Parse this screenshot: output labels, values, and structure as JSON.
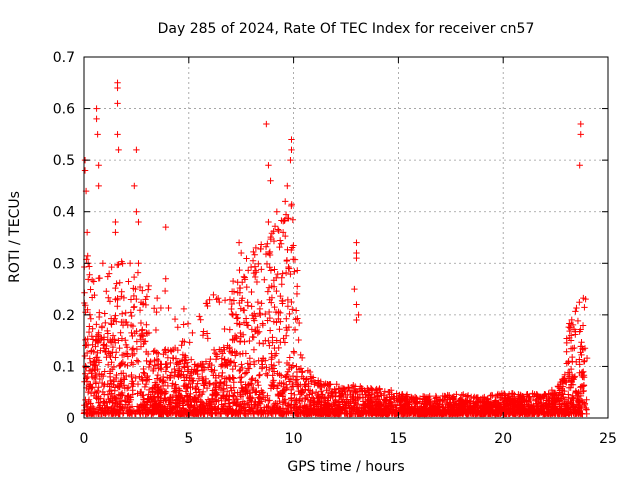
{
  "chart_data": {
    "type": "scatter",
    "title": "Day 285 of 2024, Rate Of TEC Index for receiver cn57",
    "xlabel": "GPS time / hours",
    "ylabel": "ROTI / TECUs",
    "xlim": [
      0,
      25
    ],
    "ylim": [
      0,
      0.7
    ],
    "x_ticks": [
      "0",
      "5",
      "10",
      "15",
      "20",
      "25"
    ],
    "y_ticks": [
      "0",
      "0.1",
      "0.2",
      "0.3",
      "0.4",
      "0.5",
      "0.6",
      "0.7"
    ],
    "x_tick_values": [
      0,
      5,
      10,
      15,
      20,
      25
    ],
    "y_tick_values": [
      0,
      0.1,
      0.2,
      0.3,
      0.4,
      0.5,
      0.6,
      0.7
    ],
    "grid": true,
    "marker": "+",
    "color": "#ff0000",
    "envelope": {
      "description": "approximate upper envelope of the dense ROTI point cloud (hours, TECUs)",
      "x": [
        0,
        0.5,
        1,
        1.5,
        2,
        2.5,
        3,
        3.5,
        4,
        4.5,
        5,
        5.5,
        6,
        6.5,
        7,
        7.5,
        8,
        8.5,
        9,
        9.5,
        10,
        10.5,
        11,
        11.5,
        12,
        12.5,
        13,
        13.5,
        14,
        14.5,
        15,
        16,
        17,
        18,
        19,
        20,
        21,
        22,
        22.5,
        23,
        23.5,
        24
      ],
      "y": [
        0.22,
        0.18,
        0.15,
        0.2,
        0.18,
        0.17,
        0.14,
        0.12,
        0.13,
        0.12,
        0.11,
        0.1,
        0.12,
        0.13,
        0.14,
        0.18,
        0.2,
        0.22,
        0.26,
        0.28,
        0.3,
        0.1,
        0.07,
        0.06,
        0.06,
        0.05,
        0.06,
        0.05,
        0.05,
        0.05,
        0.04,
        0.035,
        0.035,
        0.04,
        0.035,
        0.04,
        0.04,
        0.04,
        0.05,
        0.08,
        0.1,
        0.14
      ]
    },
    "outliers": [
      [
        0.05,
        0.5
      ],
      [
        0.05,
        0.48
      ],
      [
        0.1,
        0.44
      ],
      [
        0.15,
        0.36
      ],
      [
        0.2,
        0.3
      ],
      [
        0.6,
        0.6
      ],
      [
        0.6,
        0.58
      ],
      [
        0.65,
        0.55
      ],
      [
        0.7,
        0.49
      ],
      [
        0.7,
        0.45
      ],
      [
        1.6,
        0.65
      ],
      [
        1.6,
        0.64
      ],
      [
        1.6,
        0.61
      ],
      [
        1.6,
        0.55
      ],
      [
        1.65,
        0.52
      ],
      [
        2.5,
        0.52
      ],
      [
        2.4,
        0.45
      ],
      [
        1.5,
        0.38
      ],
      [
        1.5,
        0.36
      ],
      [
        2.5,
        0.4
      ],
      [
        2.6,
        0.38
      ],
      [
        0.9,
        0.3
      ],
      [
        1.2,
        0.28
      ],
      [
        2.2,
        0.3
      ],
      [
        2.6,
        0.3
      ],
      [
        3.9,
        0.37
      ],
      [
        3.9,
        0.27
      ],
      [
        8.7,
        0.57
      ],
      [
        8.8,
        0.49
      ],
      [
        8.9,
        0.46
      ],
      [
        9.9,
        0.54
      ],
      [
        9.9,
        0.52
      ],
      [
        9.85,
        0.5
      ],
      [
        9.7,
        0.45
      ],
      [
        9.6,
        0.42
      ],
      [
        9.2,
        0.4
      ],
      [
        8.8,
        0.38
      ],
      [
        9.5,
        0.36
      ],
      [
        7.4,
        0.34
      ],
      [
        7.5,
        0.32
      ],
      [
        8.2,
        0.33
      ],
      [
        13.0,
        0.34
      ],
      [
        13.0,
        0.32
      ],
      [
        13.0,
        0.31
      ],
      [
        12.9,
        0.25
      ],
      [
        13.0,
        0.22
      ],
      [
        13.1,
        0.2
      ],
      [
        13.0,
        0.19
      ],
      [
        23.7,
        0.57
      ],
      [
        23.7,
        0.55
      ],
      [
        23.65,
        0.49
      ]
    ]
  }
}
